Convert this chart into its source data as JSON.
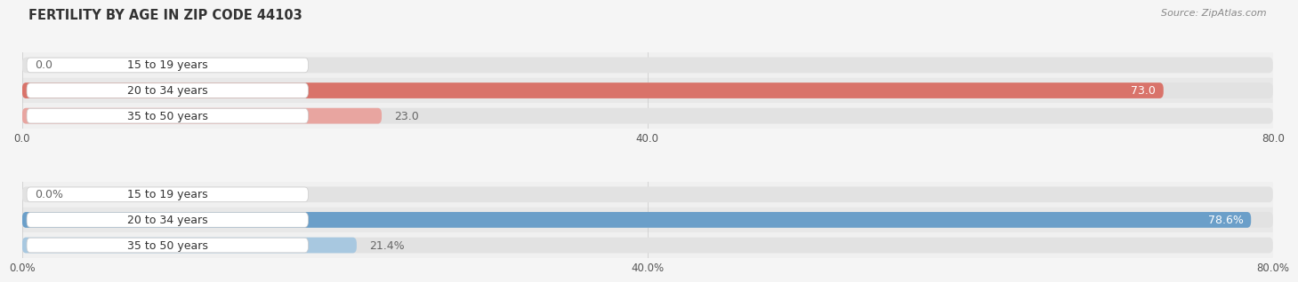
{
  "title": "FERTILITY BY AGE IN ZIP CODE 44103",
  "source": "Source: ZipAtlas.com",
  "top_chart": {
    "categories": [
      "15 to 19 years",
      "20 to 34 years",
      "35 to 50 years"
    ],
    "values": [
      0.0,
      73.0,
      23.0
    ],
    "xlim": [
      0,
      80
    ],
    "xticks": [
      0.0,
      40.0,
      80.0
    ],
    "xtick_labels": [
      "0.0",
      "40.0",
      "80.0"
    ],
    "bar_color_strong": "#d9736a",
    "bar_color_light": "#e8a5a0",
    "row_colors": [
      "#f0f0f0",
      "#e8e8e8",
      "#f0f0f0"
    ],
    "bar_bg_color": "#e2e2e2",
    "label_box_color": "#ffffff",
    "label_text_color": "#333333",
    "value_color_inside": "#ffffff",
    "value_color_outside": "#666666"
  },
  "bottom_chart": {
    "categories": [
      "15 to 19 years",
      "20 to 34 years",
      "35 to 50 years"
    ],
    "values": [
      0.0,
      78.6,
      21.4
    ],
    "xlim": [
      0,
      80
    ],
    "xticks": [
      0.0,
      40.0,
      80.0
    ],
    "xtick_labels": [
      "0.0%",
      "40.0%",
      "80.0%"
    ],
    "bar_color_strong": "#6b9fc9",
    "bar_color_light": "#a8c8e0",
    "row_colors": [
      "#f0f0f0",
      "#e8e8e8",
      "#f0f0f0"
    ],
    "bar_bg_color": "#e2e2e2",
    "label_box_color": "#ffffff",
    "label_text_color": "#333333",
    "value_color_inside": "#ffffff",
    "value_color_outside": "#666666"
  },
  "label_fontsize": 9,
  "value_fontsize": 9,
  "title_fontsize": 10.5,
  "source_fontsize": 8,
  "fig_bg": "#f5f5f5",
  "grid_color": "#cccccc"
}
